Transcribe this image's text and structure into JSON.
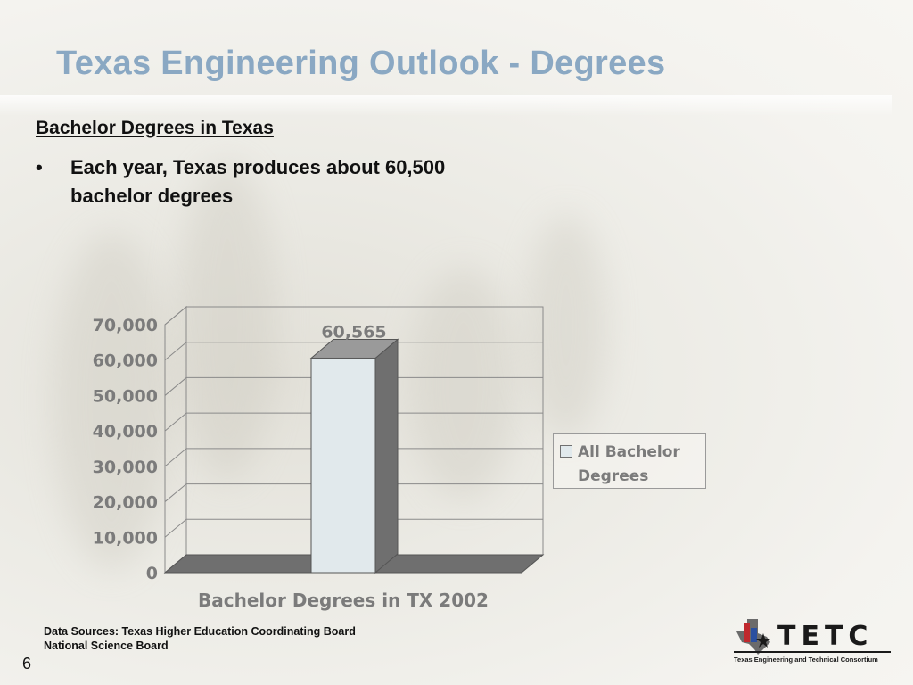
{
  "slide": {
    "title": "Texas Engineering Outlook - Degrees",
    "subheading": "Bachelor Degrees in Texas",
    "bullet_marker": "•",
    "bullet_text": "Each year, Texas produces about 60,500 bachelor degrees",
    "sources": [
      "Data Sources: Texas Higher Education Coordinating Board",
      "National Science Board"
    ],
    "page_number": "6"
  },
  "logo": {
    "wordmark": "TETC",
    "tagline": "Texas Engineering and Technical Consortium",
    "colors": {
      "red": "#c0282d",
      "blue": "#2a4fa0",
      "gray": "#6b6b6b",
      "text": "#1a1a1a"
    }
  },
  "colors": {
    "title": "#8aa8c3",
    "bar_front": "#e1e9ec",
    "bar_side": "#6f6f6f",
    "floor": "#6f6f6f",
    "axis_text": "#7b7b7b",
    "grid": "#8a8a8a"
  },
  "chart_data": {
    "type": "bar",
    "three_d": true,
    "categories": [
      "Bachelor Degrees in TX 2002"
    ],
    "series": [
      {
        "name": "All Bachelor Degrees",
        "values": [
          60565
        ]
      }
    ],
    "data_labels": [
      "60,565"
    ],
    "title": "",
    "xlabel": "Bachelor Degrees in TX 2002",
    "ylabel": "",
    "ylim": [
      0,
      70000
    ],
    "yticks": [
      0,
      10000,
      20000,
      30000,
      40000,
      50000,
      60000,
      70000
    ],
    "ytick_labels": [
      "0",
      "10,000",
      "20,000",
      "30,000",
      "40,000",
      "50,000",
      "60,000",
      "70,000"
    ],
    "grid": true,
    "legend": {
      "position": "right",
      "entries": [
        "All Bachelor Degrees"
      ]
    }
  }
}
